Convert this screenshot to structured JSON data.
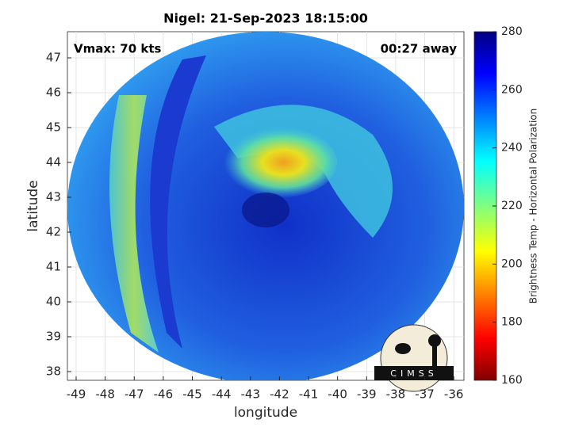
{
  "chart_data": {
    "type": "heatmap",
    "title": "Nigel: 21-Sep-2023 18:15:00",
    "xlabel": "longitude",
    "ylabel": "latitude",
    "xlim": [
      -49.3,
      -35.65
    ],
    "xticks": [
      -49,
      -48,
      -47,
      -46,
      -45,
      -44,
      -43,
      -42,
      -41,
      -40,
      -39,
      -38,
      -37,
      -36
    ],
    "ylim": [
      37.75,
      47.75
    ],
    "yticks": [
      38,
      39,
      40,
      41,
      42,
      43,
      44,
      45,
      46,
      47
    ],
    "grid": true,
    "annotations": [
      "Vmax: 70 kts",
      "00:27 away"
    ],
    "logo": "CIMSS",
    "colorbar": {
      "label": "Brightness Temp - Horizontal Polarization",
      "lim": [
        160,
        280
      ],
      "ticks": [
        160,
        180,
        200,
        220,
        240,
        260,
        280
      ]
    }
  }
}
